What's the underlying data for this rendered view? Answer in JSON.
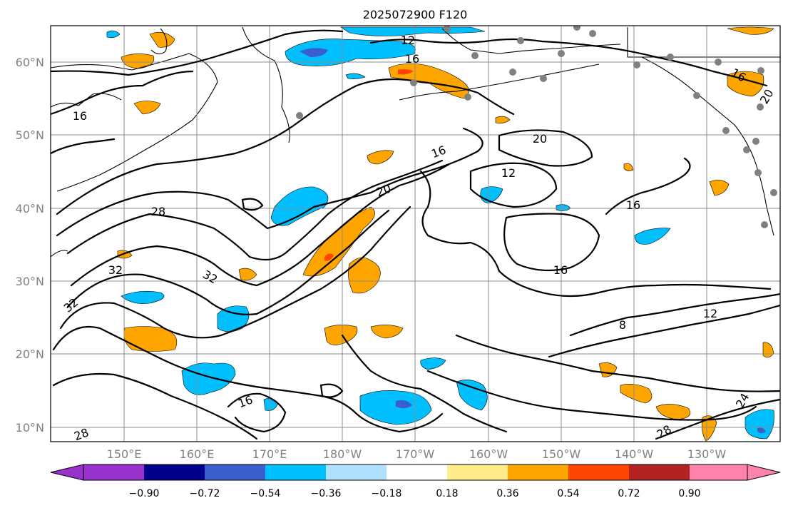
{
  "title": "2025072900 F120",
  "lat_labels": [
    "60°N",
    "50°N",
    "40°N",
    "30°N",
    "20°N",
    "10°N"
  ],
  "lon_labels": [
    "150°E",
    "160°E",
    "170°E",
    "180°W",
    "170°W",
    "160°W",
    "150°W",
    "140°W",
    "130°W"
  ],
  "contour_labels": [
    "12",
    "16",
    "16",
    "20",
    "16",
    "12",
    "20",
    "16",
    "28",
    "16",
    "32",
    "32",
    "32",
    "8",
    "12",
    "16",
    "24",
    "28",
    "28",
    "16",
    "20"
  ],
  "colorbar": {
    "tick_labels": [
      "−0.90",
      "−0.72",
      "−0.54",
      "−0.36",
      "−0.18",
      "0.18",
      "0.36",
      "0.54",
      "0.72",
      "0.90"
    ],
    "colors": [
      "#9932cc",
      "#00008b",
      "#3a5fcd",
      "#00bfff",
      "#b0e2ff",
      "#ffffff",
      "#ffec8b",
      "#ffa500",
      "#ff4500",
      "#b22222",
      "#ff82ab"
    ]
  },
  "fill_colors": {
    "neg_light": "#00bfff",
    "neg_dark": "#3a5fcd",
    "pos": "#ffa500",
    "pos_strong": "#ff4500"
  },
  "station_color": "#808080"
}
